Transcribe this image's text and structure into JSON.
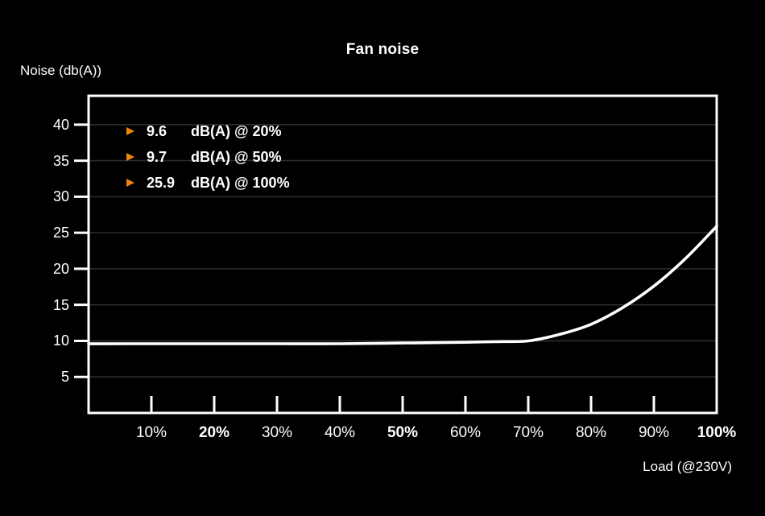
{
  "chart": {
    "title": "Fan noise",
    "y_axis_label": "Noise (db(A))",
    "x_axis_label": "Load (@230V)",
    "colors": {
      "background": "#000000",
      "text": "#ffffff",
      "line": "#ffffff",
      "grid": "#2d2d2d",
      "accent_orange": "#ef850f",
      "border": "#ffffff"
    },
    "annotations": [
      {
        "marker": "triangle-right",
        "value": "9.6",
        "label": "dB(A) @ 20%"
      },
      {
        "marker": "triangle-right",
        "value": "9.7",
        "label": "dB(A) @ 50%"
      },
      {
        "marker": "triangle-right",
        "value": "25.9",
        "label": "dB(A) @ 100%"
      }
    ]
  },
  "chart_data": {
    "type": "line",
    "title": "Fan noise",
    "xlabel": "Load (@230V)",
    "ylabel": "Noise (db(A))",
    "x": [
      0,
      10,
      20,
      30,
      40,
      50,
      60,
      65,
      70,
      75,
      80,
      85,
      90,
      95,
      100
    ],
    "values": [
      9.6,
      9.6,
      9.6,
      9.6,
      9.6,
      9.7,
      9.8,
      9.9,
      10.0,
      10.9,
      12.3,
      14.6,
      17.6,
      21.4,
      25.9
    ],
    "xlim": [
      0,
      100
    ],
    "ylim": [
      0,
      44
    ],
    "grid": true,
    "legend_position": "top-left-inside",
    "y_ticks": [
      40,
      35,
      30,
      25,
      20,
      15,
      10,
      5
    ],
    "x_ticks": [
      {
        "label": "10%",
        "value": 10,
        "bold": false
      },
      {
        "label": "20%",
        "value": 20,
        "bold": true
      },
      {
        "label": "30%",
        "value": 30,
        "bold": false
      },
      {
        "label": "40%",
        "value": 40,
        "bold": false
      },
      {
        "label": "50%",
        "value": 50,
        "bold": true
      },
      {
        "label": "60%",
        "value": 60,
        "bold": false
      },
      {
        "label": "70%",
        "value": 70,
        "bold": false
      },
      {
        "label": "80%",
        "value": 80,
        "bold": false
      },
      {
        "label": "90%",
        "value": 90,
        "bold": false
      },
      {
        "label": "100%",
        "value": 100,
        "bold": true
      }
    ],
    "annotated_points": [
      {
        "load": "20%",
        "db": 9.6
      },
      {
        "load": "50%",
        "db": 9.7
      },
      {
        "load": "100%",
        "db": 25.9
      }
    ]
  }
}
